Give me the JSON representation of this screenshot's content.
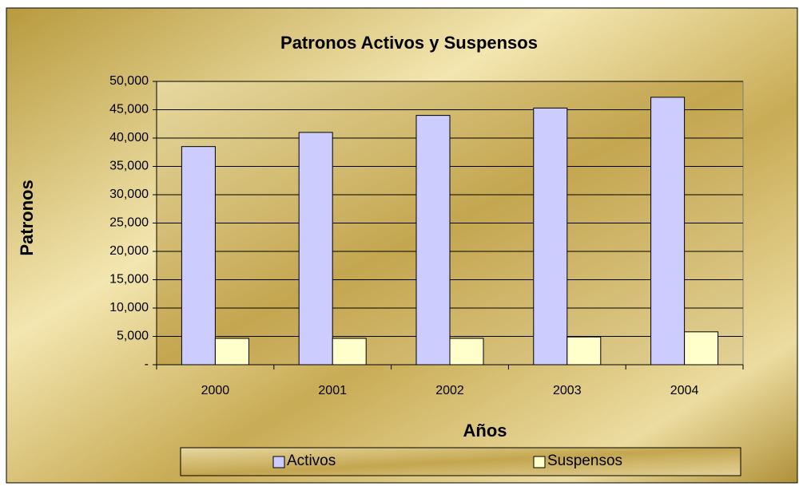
{
  "chart_data": {
    "type": "bar",
    "title": "Patronos Activos y Suspensos",
    "x_label": "Años",
    "y_label": "Patronos",
    "categories": [
      "2000",
      "2001",
      "2002",
      "2003",
      "2004"
    ],
    "series": [
      {
        "name": "Activos",
        "color": "#ccccff",
        "values": [
          38500,
          41000,
          44000,
          45300,
          47200
        ]
      },
      {
        "name": "Suspensos",
        "color": "#ffffcc",
        "values": [
          4650,
          4650,
          4650,
          4900,
          5800
        ]
      }
    ],
    "ylim": [
      0,
      50000
    ],
    "yticks": [
      {
        "value": 0,
        "label": "-"
      },
      {
        "value": 5000,
        "label": "5,000"
      },
      {
        "value": 10000,
        "label": "10,000"
      },
      {
        "value": 15000,
        "label": "15,000"
      },
      {
        "value": 20000,
        "label": "20,000"
      },
      {
        "value": 25000,
        "label": "25,000"
      },
      {
        "value": 30000,
        "label": "30,000"
      },
      {
        "value": 35000,
        "label": "35,000"
      },
      {
        "value": 40000,
        "label": "40,000"
      },
      {
        "value": 45000,
        "label": "45,000"
      },
      {
        "value": 50000,
        "label": "50,000"
      }
    ],
    "grid": true,
    "legend": "bottom"
  }
}
